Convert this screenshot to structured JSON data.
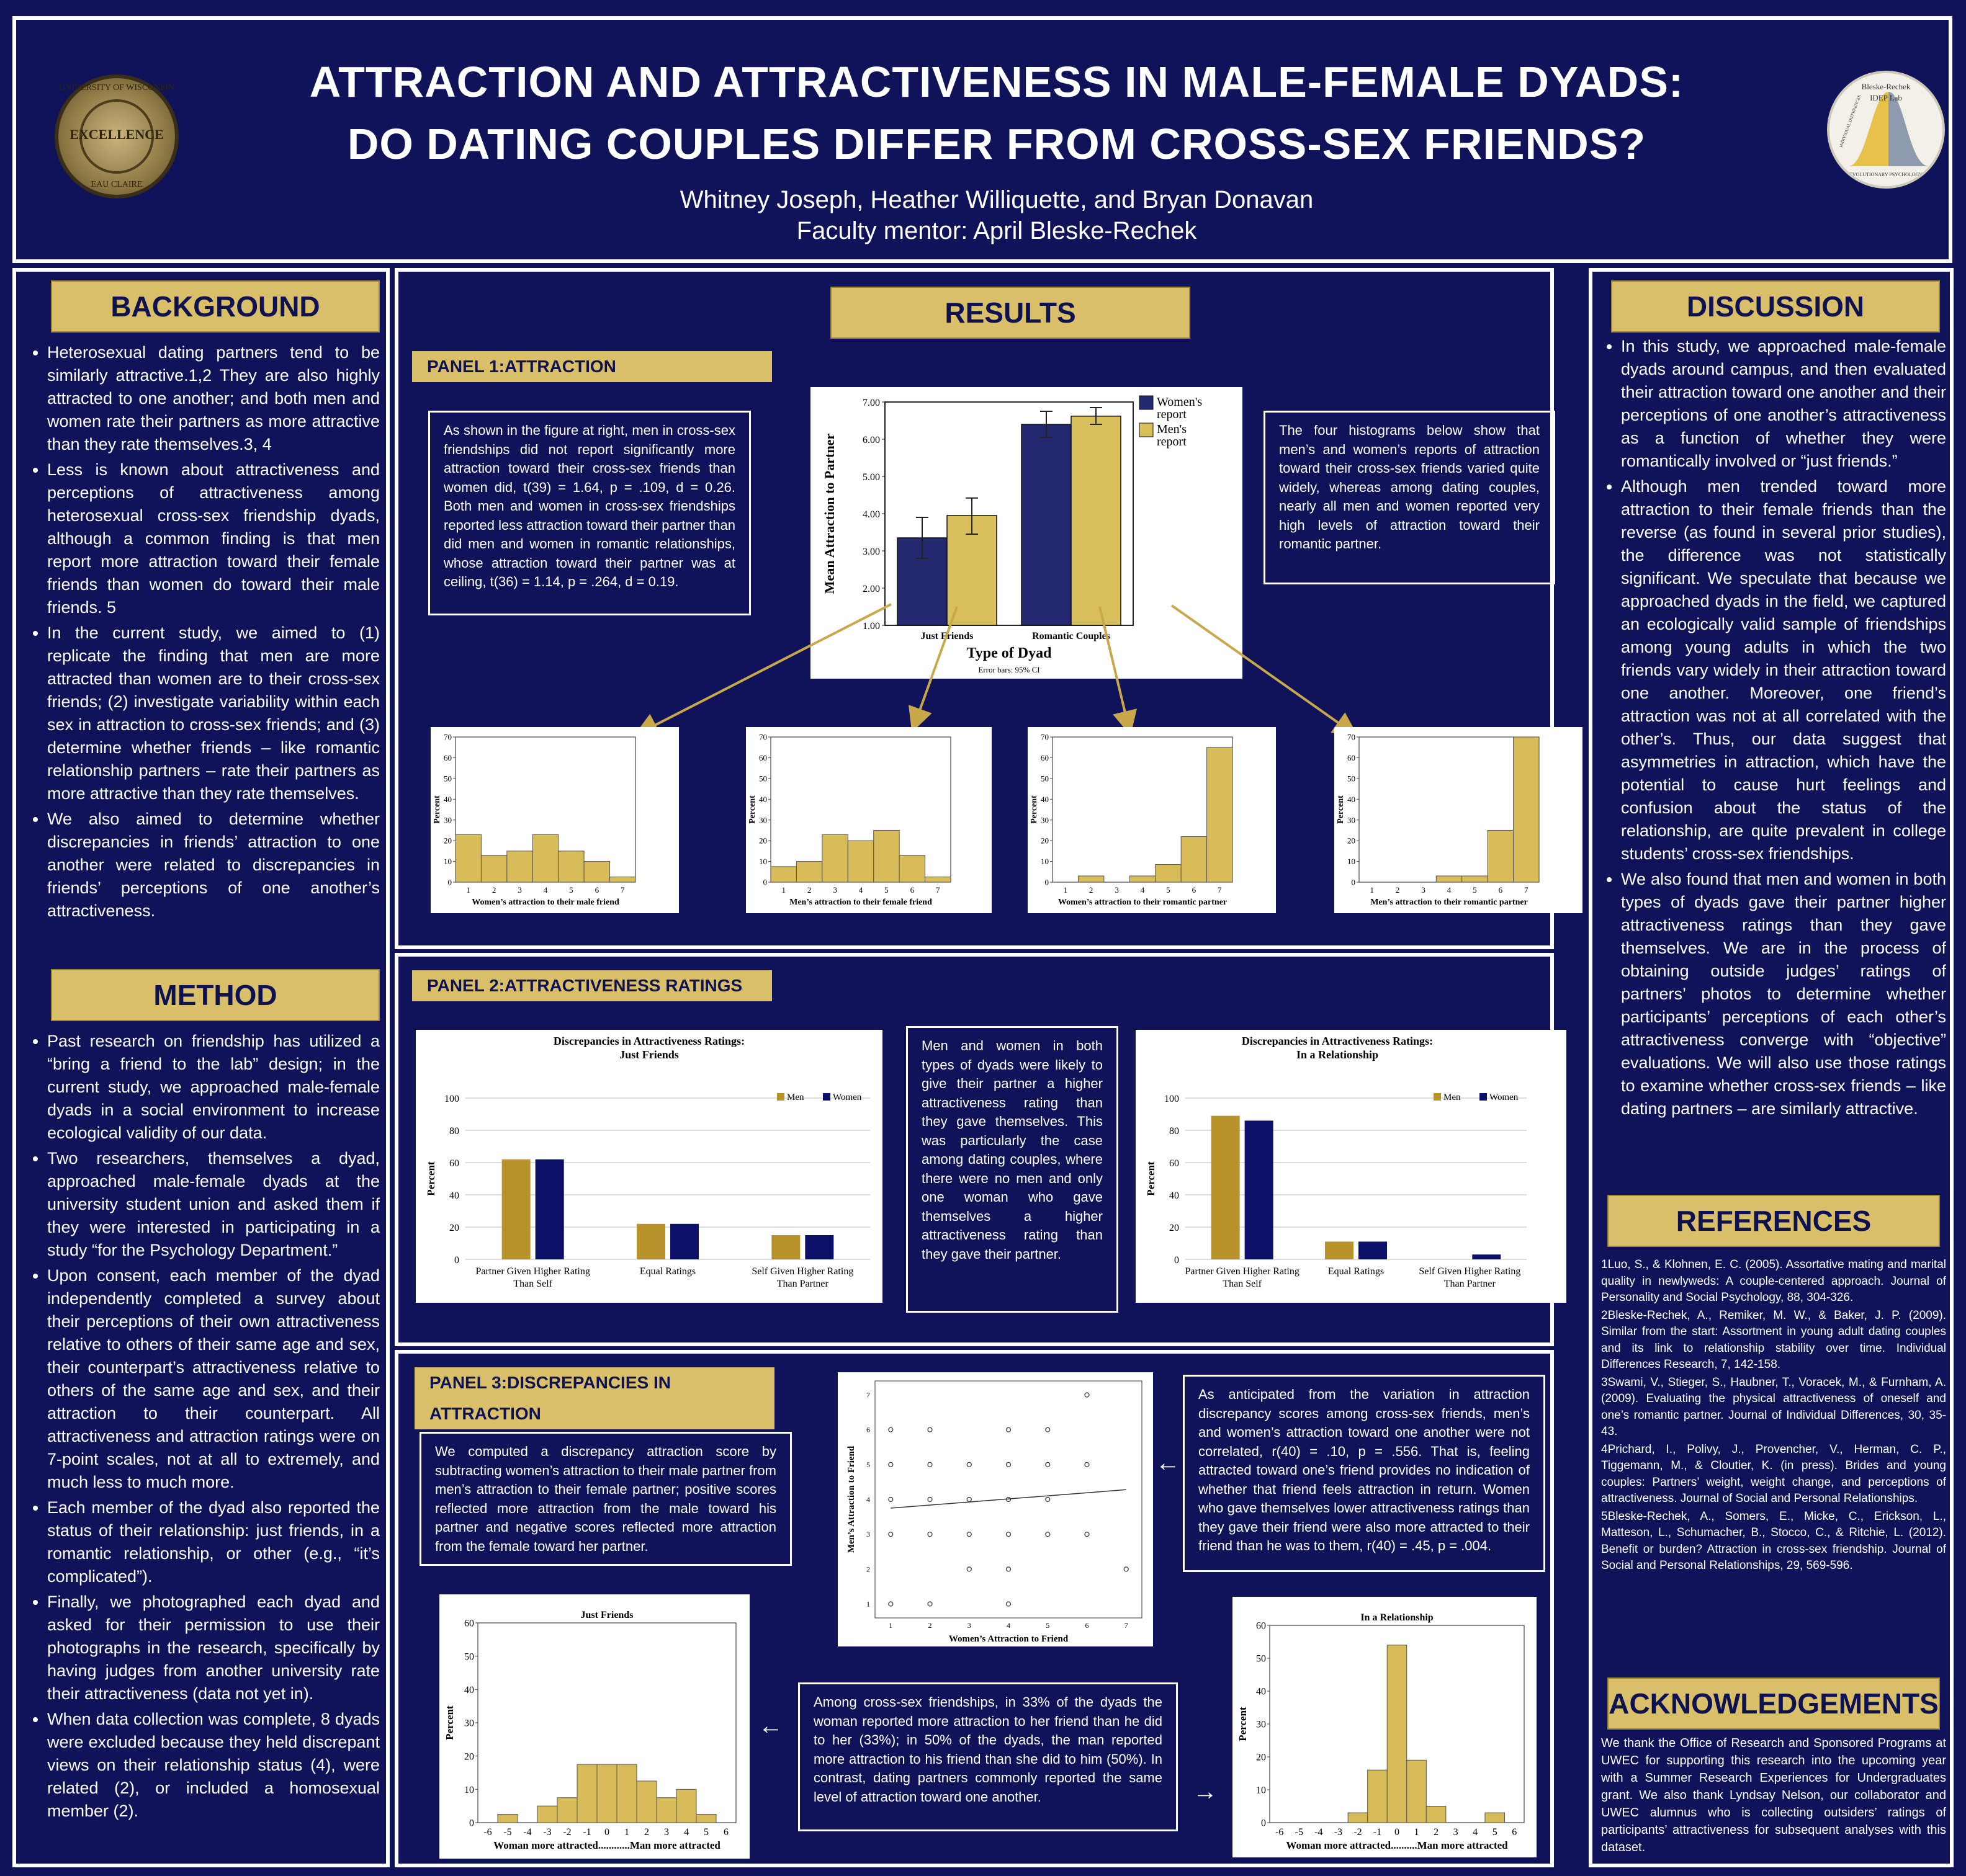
{
  "header": {
    "title_line1": "ATTRACTION AND ATTRACTIVENESS IN MALE-FEMALE DYADS:",
    "title_line2": "DO DATING COUPLES DIFFER FROM CROSS-SEX FRIENDS?",
    "authors": "Whitney Joseph, Heather Williquette, and Bryan Donavan",
    "mentor": "Faculty mentor: April Bleske-Rechek",
    "seal_top": "UNIVERSITY OF WISCONSIN",
    "seal_center": "EXCELLENCE",
    "seal_bottom": "EAU CLAIRE",
    "lab_logo_line1": "Bleske-Rechek",
    "lab_logo_line2": "IDEP Lab",
    "lab_logo_bottom": "EVOLUTIONARY PSYCHOLOGY",
    "lab_logo_side": "INDIVIDUAL DIFFERENCES"
  },
  "background": {
    "heading": "BACKGROUND",
    "items": [
      "Heterosexual dating partners tend to be similarly attractive.1,2 They are also highly attracted to one another; and both men and women rate their partners as more attractive than they rate themselves.3, 4",
      "Less is known about attractiveness and perceptions of attractiveness among heterosexual cross-sex friendship dyads, although a common finding is that men report more attraction toward their female friends than women do toward their male friends. 5",
      "In the current study, we aimed to (1) replicate the finding that men are more attracted than women are to their cross-sex friends; (2) investigate variability within each sex in attraction to cross-sex friends; and (3) determine whether friends – like romantic relationship partners – rate their partners as more attractive than they rate themselves.",
      "We also aimed to determine whether discrepancies in friends’ attraction to one another were related to discrepancies in friends’ perceptions of one another’s attractiveness."
    ]
  },
  "method": {
    "heading": "METHOD",
    "items": [
      "Past research on friendship has utilized a “bring a friend to the lab” design; in the current study, we approached male-female dyads in a social environment to increase ecological validity of our data.",
      "Two researchers, themselves a dyad, approached male-female dyads at the university student union and asked them if they were interested in participating in a study “for the Psychology Department.”",
      "Upon consent, each member of the dyad independently completed a survey about their perceptions of their own attractiveness relative to others of their same age and sex, their counterpart’s attractiveness relative to others of the same age and sex, and their attraction to their counterpart. All attractiveness and attraction ratings were on 7-point scales, not at all to extremely, and much less to much more.",
      "Each member of the dyad also reported the status of their relationship: just friends, in a romantic relationship, or other (e.g., “it’s complicated”).",
      "Finally, we photographed each dyad and asked for their permission to use their photographs in the research, specifically by having judges from another university rate their attractiveness (data not yet in).",
      "When data collection was complete, 8 dyads were excluded because they held discrepant views on their relationship status (4), were related (2), or included a homosexual member (2)."
    ]
  },
  "results": {
    "heading": "RESULTS",
    "panel1": {
      "heading": "PANEL 1:ATTRACTION",
      "left_text": "As shown in the figure at right, men in cross-sex friendships did not report significantly more attraction toward their cross-sex friends than women did, t(39) = 1.64, p = .109, d = 0.26. Both men and women in cross-sex friendships reported less attraction toward their partner than did men and women in romantic relationships, whose attraction toward their partner was at ceiling, t(36) = 1.14, p = .264, d = 0.19.",
      "right_text": "The four histograms below show that men’s and women’s reports of attraction toward their cross-sex friends varied quite widely, whereas among dating couples, nearly all men and women reported very high levels of attraction toward their romantic partner."
    },
    "panel2": {
      "heading": "PANEL 2:ATTRACTIVENESS RATINGS",
      "middle_text": "Men and women in both types of dyads were likely to give their partner a higher attractiveness rating than they gave themselves. This was particularly the case among dating couples, where there were no men and only one woman who gave themselves a higher attractiveness rating than they gave their partner."
    },
    "panel3": {
      "heading": "PANEL 3:DISCREPANCIES IN ATTRACTION",
      "left_text": "We computed a discrepancy attraction score by subtracting women’s attraction to their male partner from men’s attraction to their female partner; positive scores reflected more attraction from the male toward his partner and negative scores reflected more attraction from the female toward her partner.",
      "right_text": "As anticipated from the variation in attraction discrepancy scores among cross-sex friends, men’s and women’s attraction toward one another were not correlated, r(40) = .10, p = .556. That is, feeling attracted toward one’s friend provides no indication of whether that friend feels attraction in return. Women who gave themselves lower attractiveness ratings than they gave their friend were also more attracted to their friend than he was to them, r(40) = .45, p = .004.",
      "bottom_text": "Among cross-sex friendships, in 33% of the dyads the woman reported more attraction to her friend than he did to her (33%); in 50% of the dyads, the man reported more attraction to his friend than she did to him (50%). In contrast, dating partners commonly reported the same level of attraction toward one another.",
      "arrow_left": "←",
      "arrow_right": "→"
    }
  },
  "discussion": {
    "heading": "DISCUSSION",
    "items": [
      "In this study, we approached male-female dyads around campus, and then evaluated their attraction toward one another and their perceptions of one another’s attractiveness as a function of whether they were romantically involved or “just friends.”",
      "Although men trended toward more attraction to their female friends than the reverse (as found in several prior studies), the difference was not statistically significant. We speculate that because we approached dyads in the field, we captured an ecologically valid sample of friendships among young adults in which the two friends vary widely in their attraction toward one another. Moreover, one friend’s attraction was not at all correlated with the other’s. Thus, our data suggest that asymmetries in attraction, which have the potential to cause hurt feelings and confusion about the status of the relationship, are quite prevalent in college students’ cross-sex friendships.",
      "We also found that men and women in both types of dyads gave their partner higher attractiveness ratings than they gave themselves. We are in the process of obtaining outside judges’ ratings of partners’ photos to determine whether participants’ perceptions of each other’s attractiveness converge with “objective” evaluations. We will also use those ratings to examine whether cross-sex friends – like dating partners – are similarly attractive."
    ]
  },
  "references": {
    "heading": "REFERENCES",
    "items": [
      "1Luo, S., & Klohnen, E. C. (2005). Assortative mating and marital quality in newlyweds: A couple-centered approach. Journal of Personality and Social Psychology, 88, 304-326.",
      "2Bleske-Rechek, A., Remiker, M. W., & Baker, J. P. (2009). Similar from the start: Assortment in young adult dating couples and its link to relationship stability over time. Individual Differences Research, 7, 142-158.",
      "3Swami, V., Stieger, S., Haubner, T., Voracek, M., & Furnham, A. (2009). Evaluating the physical attractiveness of oneself and one’s romantic partner. Journal of Individual Differences, 30, 35-43.",
      "4Prichard, I., Polivy, J., Provencher, V., Herman, C. P., Tiggemann, M., & Cloutier, K. (in press). Brides and young couples: Partners’ weight, weight change, and perceptions of attractiveness. Journal of Social and Personal Relationships.",
      "5Bleske-Rechek, A., Somers, E., Micke, C., Erickson, L., Matteson, L., Schumacher, B., Stocco, C., & Ritchie, L. (2012). Benefit or burden? Attraction in cross-sex friendship. Journal of Social and Personal Relationships, 29, 569-596."
    ]
  },
  "acknowledgements": {
    "heading": "ACKNOWLEDGEMENTS",
    "text": "We thank the Office of Research and Sponsored Programs at UWEC for supporting this research into the upcoming year with a Summer Research Experiences for Undergraduates grant. We also thank Lyndsay Nelson, our collaborator and UWEC alumnus who is collecting outsiders’ ratings of participants’ attractiveness for subsequent analyses with this dataset."
  },
  "colors": {
    "navy": "#10135a",
    "gold": "#d9bf6a",
    "bar_gold": "#b8922a",
    "bar_navy": "#0d1068",
    "hist_fill": "#d8bc5a"
  },
  "chart_data": [
    {
      "id": "mean_attraction",
      "type": "bar",
      "categories": [
        "Just Friends",
        "Romantic Couples"
      ],
      "series": [
        {
          "name": "Women's report",
          "values": [
            3.35,
            6.4
          ],
          "ci": [
            [
              2.8,
              3.9
            ],
            [
              6.05,
              6.75
            ]
          ],
          "color": "#24286e"
        },
        {
          "name": "Men's report",
          "values": [
            3.95,
            6.62
          ],
          "ci": [
            [
              3.45,
              4.42
            ],
            [
              6.4,
              6.85
            ]
          ],
          "color": "#d9bf5c"
        }
      ],
      "yticks": [
        "1.00",
        "2.00",
        "3.00",
        "4.00",
        "5.00",
        "6.00",
        "7.00"
      ],
      "ylim": [
        1,
        7
      ],
      "xlabel": "Type of Dyad",
      "ylabel": "Mean Attraction to Partner",
      "note": "Error bars: 95% CI",
      "legend_position": "right"
    },
    {
      "id": "hist_women_friend",
      "type": "bar",
      "xlabel": "Women’s attraction to their male friend",
      "ylabel": "Percent",
      "categories": [
        "1",
        "2",
        "3",
        "4",
        "5",
        "6",
        "7"
      ],
      "values": [
        23,
        13,
        15,
        23,
        15,
        10,
        2.5
      ],
      "ylim": [
        0,
        70
      ],
      "yticks": [
        "0",
        "10",
        "20",
        "30",
        "40",
        "50",
        "60",
        "70"
      ]
    },
    {
      "id": "hist_men_friend",
      "type": "bar",
      "xlabel": "Men’s attraction to their female friend",
      "ylabel": "Percent",
      "categories": [
        "1",
        "2",
        "3",
        "4",
        "5",
        "6",
        "7"
      ],
      "values": [
        7.5,
        10,
        23,
        20,
        25,
        13,
        2.5
      ],
      "ylim": [
        0,
        70
      ],
      "yticks": [
        "0",
        "10",
        "20",
        "30",
        "40",
        "50",
        "60",
        "70"
      ]
    },
    {
      "id": "hist_women_romantic",
      "type": "bar",
      "xlabel": "Women’s attraction to their romantic partner",
      "ylabel": "Percent",
      "categories": [
        "1",
        "2",
        "3",
        "4",
        "5",
        "6",
        "7"
      ],
      "values": [
        0,
        3,
        0,
        3,
        8.5,
        22,
        65
      ],
      "ylim": [
        0,
        70
      ],
      "yticks": [
        "0",
        "10",
        "20",
        "30",
        "40",
        "50",
        "60",
        "70"
      ]
    },
    {
      "id": "hist_men_romantic",
      "type": "bar",
      "xlabel": "Men’s attraction to their romantic partner",
      "ylabel": "Percent",
      "categories": [
        "1",
        "2",
        "3",
        "4",
        "5",
        "6",
        "7"
      ],
      "values": [
        0,
        0,
        0,
        3,
        3,
        25,
        70
      ],
      "ylim": [
        0,
        70
      ],
      "yticks": [
        "0",
        "10",
        "20",
        "30",
        "40",
        "50",
        "60",
        "70"
      ]
    },
    {
      "id": "ratings_friends",
      "type": "bar",
      "title": "Discrepancies in Attractiveness Ratings:",
      "subtitle": "Just Friends",
      "categories": [
        "Partner Given Higher Rating Than Self",
        "Equal Ratings",
        "Self Given Higher Rating Than Partner"
      ],
      "series": [
        {
          "name": "Men",
          "values": [
            62,
            22,
            15
          ],
          "color": "#b8922a"
        },
        {
          "name": "Women",
          "values": [
            62,
            22,
            15
          ],
          "color": "#0d1068"
        }
      ],
      "ylim": [
        0,
        100
      ],
      "yticks": [
        "0",
        "20",
        "40",
        "60",
        "80",
        "100"
      ],
      "ylabel": "Percent",
      "legend_position": "top-right"
    },
    {
      "id": "ratings_relationship",
      "type": "bar",
      "title": "Discrepancies in Attractiveness Ratings:",
      "subtitle": "In a Relationship",
      "categories": [
        "Partner Given Higher Rating Than Self",
        "Equal Ratings",
        "Self Given Higher Rating Than Partner"
      ],
      "series": [
        {
          "name": "Men",
          "values": [
            89,
            11,
            0
          ],
          "color": "#b8922a"
        },
        {
          "name": "Women",
          "values": [
            86,
            11,
            3
          ],
          "color": "#0d1068"
        }
      ],
      "ylim": [
        0,
        100
      ],
      "yticks": [
        "0",
        "20",
        "40",
        "60",
        "80",
        "100"
      ],
      "ylabel": "Percent",
      "legend_position": "top-right"
    },
    {
      "id": "scatter_friends",
      "type": "scatter",
      "xlabel": "Women’s Attraction to Friend",
      "ylabel": "Men’s Attraction to Friend",
      "xlim": [
        0.6,
        7.4
      ],
      "ylim": [
        0.6,
        7.4
      ],
      "xticks": [
        "1",
        "2",
        "3",
        "4",
        "5",
        "6",
        "7"
      ],
      "yticks": [
        "1",
        "2",
        "3",
        "4",
        "5",
        "6",
        "7"
      ],
      "points": [
        [
          1,
          1
        ],
        [
          1,
          3
        ],
        [
          1,
          4
        ],
        [
          1,
          5
        ],
        [
          1,
          6
        ],
        [
          2,
          1
        ],
        [
          2,
          3
        ],
        [
          2,
          4
        ],
        [
          2,
          5
        ],
        [
          2,
          6
        ],
        [
          3,
          2
        ],
        [
          3,
          3
        ],
        [
          3,
          4
        ],
        [
          3,
          5
        ],
        [
          4,
          1
        ],
        [
          4,
          2
        ],
        [
          4,
          3
        ],
        [
          4,
          4
        ],
        [
          4,
          5
        ],
        [
          4,
          6
        ],
        [
          5,
          3
        ],
        [
          5,
          4
        ],
        [
          5,
          5
        ],
        [
          5,
          6
        ],
        [
          6,
          3
        ],
        [
          6,
          5
        ],
        [
          6,
          7
        ],
        [
          7,
          2
        ]
      ],
      "fit": [
        [
          1,
          3.75
        ],
        [
          7,
          4.28
        ]
      ]
    },
    {
      "id": "disc_friends",
      "type": "bar",
      "title": "Just Friends",
      "ylabel": "Percent",
      "xlabel": "Woman more attracted............Man more attracted",
      "categories": [
        "-6",
        "-5",
        "-4",
        "-3",
        "-2",
        "-1",
        "0",
        "1",
        "2",
        "3",
        "4",
        "5",
        "6"
      ],
      "values": [
        0,
        2.5,
        0,
        5,
        7.5,
        17.5,
        17.5,
        17.5,
        12.5,
        7.5,
        10,
        2.5,
        0
      ],
      "ylim": [
        0,
        60
      ],
      "yticks": [
        "0",
        "10",
        "20",
        "30",
        "40",
        "50",
        "60"
      ]
    },
    {
      "id": "disc_relationship",
      "type": "bar",
      "title": "In a Relationship",
      "ylabel": "Percent",
      "xlabel": "Woman more attracted..........Man more attracted",
      "categories": [
        "-6",
        "-5",
        "-4",
        "-3",
        "-2",
        "-1",
        "0",
        "1",
        "2",
        "3",
        "4",
        "5",
        "6"
      ],
      "values": [
        0,
        0,
        0,
        0,
        3,
        16,
        54,
        19,
        5,
        0,
        0,
        3,
        0
      ],
      "ylim": [
        0,
        60
      ],
      "yticks": [
        "0",
        "10",
        "20",
        "30",
        "40",
        "50",
        "60"
      ]
    }
  ]
}
